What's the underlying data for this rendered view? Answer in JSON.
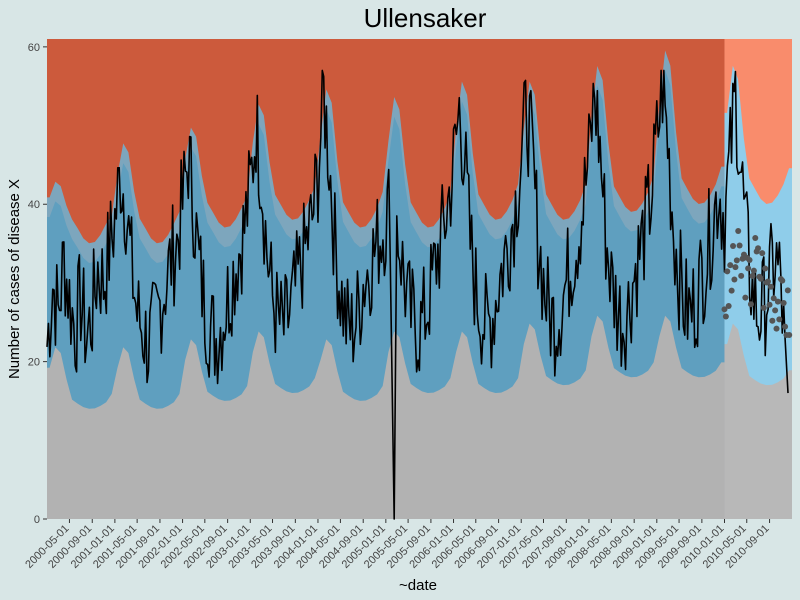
{
  "chart_data": {
    "type": "area",
    "title": "Ullensaker",
    "xlabel": "~date",
    "ylabel": "Number of cases of disease X",
    "x_range": [
      "2000-01-01",
      "2010-12-31"
    ],
    "ylim": [
      0,
      61
    ],
    "y_ticks": [
      0,
      20,
      40,
      60
    ],
    "x_ticks": [
      "2000-05-01",
      "2000-09-01",
      "2001-01-01",
      "2001-05-01",
      "2001-09-01",
      "2002-01-01",
      "2002-05-01",
      "2002-09-01",
      "2003-01-01",
      "2003-05-01",
      "2003-09-01",
      "2004-01-01",
      "2004-05-01",
      "2004-09-01",
      "2005-01-01",
      "2005-05-01",
      "2005-09-01",
      "2006-01-01",
      "2006-05-01",
      "2006-09-01",
      "2007-01-01",
      "2007-05-01",
      "2007-09-01",
      "2008-01-01",
      "2008-05-01",
      "2008-09-01",
      "2009-01-01",
      "2009-05-01",
      "2009-09-01",
      "2010-01-01",
      "2010-05-01",
      "2010-09-01"
    ],
    "forecast_start": "2010-01-01",
    "bands": {
      "colors": {
        "low": "#b2b2b2",
        "normal": "#5f9fbf",
        "normal_light": "#6fb4d4",
        "high": "#cc5a3c",
        "forecast_low": "#b8b8b8",
        "forecast_normal": "#8fcdea",
        "forecast_high": "#f98c6c",
        "background": "#d8e6e6"
      },
      "yearly": [
        {
          "year": 2000,
          "low": 17,
          "normal_upper": 42,
          "peak_upper": 43
        },
        {
          "year": 2001,
          "low": 17,
          "normal_upper": 42,
          "peak_upper": 48
        },
        {
          "year": 2002,
          "low": 18,
          "normal_upper": 44,
          "peak_upper": 50
        },
        {
          "year": 2003,
          "low": 19,
          "normal_upper": 45,
          "peak_upper": 53
        },
        {
          "year": 2004,
          "low": 18,
          "normal_upper": 44,
          "peak_upper": 55
        },
        {
          "year": 2005,
          "low": 19,
          "normal_upper": 44,
          "peak_upper": 54
        },
        {
          "year": 2006,
          "low": 19,
          "normal_upper": 45,
          "peak_upper": 56
        },
        {
          "year": 2007,
          "low": 20,
          "normal_upper": 45,
          "peak_upper": 56
        },
        {
          "year": 2008,
          "low": 21,
          "normal_upper": 46,
          "peak_upper": 58
        },
        {
          "year": 2009,
          "low": 21,
          "normal_upper": 47,
          "peak_upper": 60
        },
        {
          "year": 2010,
          "low": 20,
          "normal_upper": 47,
          "peak_upper": 58
        }
      ]
    },
    "series": [
      {
        "type": "line",
        "color": "#000000",
        "description_values_monthly": [
          [
            "2000-01-01",
            22
          ],
          [
            "2000-02-01",
            30
          ],
          [
            "2000-03-01",
            26
          ],
          [
            "2000-04-01",
            33
          ],
          [
            "2000-05-01",
            28
          ],
          [
            "2000-06-01",
            24
          ],
          [
            "2000-07-01",
            28
          ],
          [
            "2000-08-01",
            23
          ],
          [
            "2000-09-01",
            26
          ],
          [
            "2000-10-01",
            32
          ],
          [
            "2000-11-01",
            30
          ],
          [
            "2000-12-01",
            34
          ],
          [
            "2001-01-01",
            38
          ],
          [
            "2001-02-01",
            44
          ],
          [
            "2001-03-01",
            40
          ],
          [
            "2001-04-01",
            32
          ],
          [
            "2001-05-01",
            26
          ],
          [
            "2001-06-01",
            24
          ],
          [
            "2001-07-01",
            22
          ],
          [
            "2001-08-01",
            24
          ],
          [
            "2001-09-01",
            27
          ],
          [
            "2001-10-01",
            30
          ],
          [
            "2001-11-01",
            33
          ],
          [
            "2001-12-01",
            35
          ],
          [
            "2002-01-01",
            40
          ],
          [
            "2002-02-01",
            46
          ],
          [
            "2002-03-01",
            40
          ],
          [
            "2002-04-01",
            32
          ],
          [
            "2002-05-01",
            27
          ],
          [
            "2002-06-01",
            24
          ],
          [
            "2002-07-01",
            23
          ],
          [
            "2002-08-01",
            25
          ],
          [
            "2002-09-01",
            28
          ],
          [
            "2002-10-01",
            31
          ],
          [
            "2002-11-01",
            34
          ],
          [
            "2002-12-01",
            37
          ],
          [
            "2003-01-01",
            42
          ],
          [
            "2003-02-01",
            50
          ],
          [
            "2003-03-01",
            44
          ],
          [
            "2003-04-01",
            34
          ],
          [
            "2003-05-01",
            28
          ],
          [
            "2003-06-01",
            25
          ],
          [
            "2003-07-01",
            24
          ],
          [
            "2003-08-01",
            26
          ],
          [
            "2003-09-01",
            29
          ],
          [
            "2003-10-01",
            32
          ],
          [
            "2003-11-01",
            35
          ],
          [
            "2003-12-01",
            38
          ],
          [
            "2004-01-01",
            44
          ],
          [
            "2004-02-01",
            54
          ],
          [
            "2004-03-01",
            46
          ],
          [
            "2004-04-01",
            35
          ],
          [
            "2004-05-01",
            29
          ],
          [
            "2004-06-01",
            25
          ],
          [
            "2004-07-01",
            24
          ],
          [
            "2004-08-01",
            26
          ],
          [
            "2004-09-01",
            30
          ],
          [
            "2004-10-01",
            32
          ],
          [
            "2004-11-01",
            34
          ],
          [
            "2004-12-01",
            36
          ],
          [
            "2005-01-01",
            38
          ],
          [
            "2005-02-01",
            41
          ],
          [
            "2005-02-15",
            0
          ],
          [
            "2005-03-01",
            38
          ],
          [
            "2005-04-01",
            32
          ],
          [
            "2005-05-01",
            27
          ],
          [
            "2005-06-01",
            25
          ],
          [
            "2005-07-01",
            24
          ],
          [
            "2005-08-01",
            26
          ],
          [
            "2005-09-01",
            29
          ],
          [
            "2005-10-01",
            33
          ],
          [
            "2005-11-01",
            36
          ],
          [
            "2005-12-01",
            40
          ],
          [
            "2006-01-01",
            45
          ],
          [
            "2006-02-01",
            52
          ],
          [
            "2006-03-01",
            46
          ],
          [
            "2006-04-01",
            35
          ],
          [
            "2006-05-01",
            29
          ],
          [
            "2006-06-01",
            26
          ],
          [
            "2006-07-01",
            24
          ],
          [
            "2006-08-01",
            26
          ],
          [
            "2006-09-01",
            30
          ],
          [
            "2006-10-01",
            33
          ],
          [
            "2006-11-01",
            36
          ],
          [
            "2006-12-01",
            40
          ],
          [
            "2007-01-01",
            46
          ],
          [
            "2007-02-01",
            52
          ],
          [
            "2007-03-01",
            46
          ],
          [
            "2007-04-01",
            36
          ],
          [
            "2007-05-01",
            30
          ],
          [
            "2007-06-01",
            26
          ],
          [
            "2007-07-01",
            25
          ],
          [
            "2007-08-01",
            27
          ],
          [
            "2007-09-01",
            30
          ],
          [
            "2007-10-01",
            33
          ],
          [
            "2007-11-01",
            36
          ],
          [
            "2007-12-01",
            40
          ],
          [
            "2008-01-01",
            46
          ],
          [
            "2008-02-01",
            54
          ],
          [
            "2008-03-01",
            47
          ],
          [
            "2008-04-01",
            36
          ],
          [
            "2008-05-01",
            30
          ],
          [
            "2008-06-01",
            27
          ],
          [
            "2008-07-01",
            25
          ],
          [
            "2008-08-01",
            27
          ],
          [
            "2008-09-01",
            31
          ],
          [
            "2008-10-01",
            34
          ],
          [
            "2008-11-01",
            37
          ],
          [
            "2008-12-01",
            41
          ],
          [
            "2009-01-01",
            48
          ],
          [
            "2009-02-01",
            55
          ],
          [
            "2009-03-01",
            48
          ],
          [
            "2009-04-01",
            37
          ],
          [
            "2009-05-01",
            31
          ],
          [
            "2009-06-01",
            27
          ],
          [
            "2009-07-01",
            26
          ],
          [
            "2009-08-01",
            28
          ],
          [
            "2009-09-01",
            31
          ],
          [
            "2009-10-01",
            34
          ],
          [
            "2009-11-01",
            38
          ],
          [
            "2009-12-01",
            42
          ],
          [
            "2010-01-01",
            38
          ],
          [
            "2010-02-01",
            46
          ],
          [
            "2010-03-01",
            54
          ],
          [
            "2010-04-01",
            44
          ],
          [
            "2010-05-01",
            35
          ],
          [
            "2010-06-01",
            29
          ],
          [
            "2010-07-01",
            26
          ],
          [
            "2010-08-01",
            27
          ],
          [
            "2010-09-01",
            30
          ],
          [
            "2010-10-01",
            33
          ],
          [
            "2010-11-01",
            30
          ],
          [
            "2010-12-01",
            16
          ]
        ]
      },
      {
        "type": "points",
        "color": "#555555",
        "description_values_monthly": [
          [
            "2010-01-01",
            28
          ],
          [
            "2010-02-01",
            31
          ],
          [
            "2010-03-01",
            33
          ],
          [
            "2010-04-01",
            32
          ],
          [
            "2010-05-01",
            30
          ],
          [
            "2010-06-01",
            33
          ],
          [
            "2010-07-01",
            32
          ],
          [
            "2010-08-01",
            30
          ],
          [
            "2010-09-01",
            29
          ],
          [
            "2010-10-01",
            28
          ],
          [
            "2010-11-01",
            27
          ],
          [
            "2010-12-01",
            26
          ]
        ]
      }
    ]
  }
}
